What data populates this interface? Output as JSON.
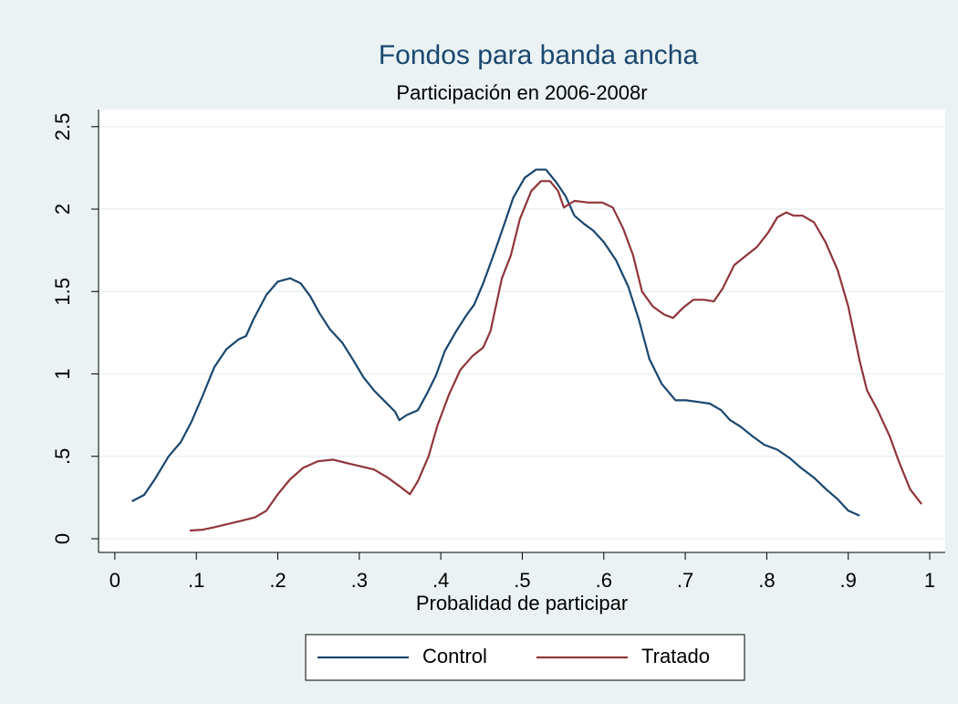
{
  "chart_data": {
    "type": "line",
    "title": "Fondos para banda ancha",
    "subtitle": "Participación en 2006-2008r",
    "x_label": "Probalidad de participar",
    "xlim": [
      -0.02,
      1.019
    ],
    "ylim": [
      -0.083,
      2.604
    ],
    "xticks": [
      0,
      {
        "value": 0.1,
        "label": ".1"
      },
      {
        "value": 0.2,
        "label": ".2"
      },
      {
        "value": 0.3,
        "label": ".3"
      },
      {
        "value": 0.4,
        "label": ".4"
      },
      {
        "value": 0.5,
        "label": ".5"
      },
      {
        "value": 0.6,
        "label": ".6"
      },
      {
        "value": 0.7,
        "label": ".7"
      },
      {
        "value": 0.8,
        "label": ".8"
      },
      {
        "value": 0.9,
        "label": ".9"
      },
      1
    ],
    "yticks": [
      0,
      {
        "value": 0.5,
        "label": ".5"
      },
      1,
      1.5,
      2,
      2.5
    ],
    "grid": true,
    "legend": "bottom",
    "series": [
      {
        "name": "Control",
        "color": "#1a476f",
        "x": [
          0.021,
          0.036,
          0.049,
          0.066,
          0.081,
          0.094,
          0.108,
          0.122,
          0.137,
          0.152,
          0.161,
          0.17,
          0.186,
          0.2,
          0.215,
          0.228,
          0.24,
          0.251,
          0.264,
          0.279,
          0.293,
          0.305,
          0.318,
          0.332,
          0.344,
          0.349,
          0.358,
          0.372,
          0.383,
          0.394,
          0.405,
          0.419,
          0.432,
          0.441,
          0.452,
          0.466,
          0.478,
          0.489,
          0.503,
          0.517,
          0.529,
          0.542,
          0.553,
          0.564,
          0.576,
          0.587,
          0.6,
          0.615,
          0.63,
          0.643,
          0.656,
          0.671,
          0.688,
          0.701,
          0.716,
          0.73,
          0.744,
          0.755,
          0.768,
          0.783,
          0.797,
          0.813,
          0.828,
          0.842,
          0.858,
          0.873,
          0.887,
          0.9,
          0.914
        ],
        "values": [
          0.227,
          0.266,
          0.36,
          0.5,
          0.587,
          0.709,
          0.87,
          1.04,
          1.15,
          1.21,
          1.23,
          1.33,
          1.48,
          1.56,
          1.58,
          1.55,
          1.47,
          1.37,
          1.27,
          1.19,
          1.08,
          0.98,
          0.9,
          0.83,
          0.77,
          0.72,
          0.75,
          0.78,
          0.88,
          0.99,
          1.14,
          1.26,
          1.36,
          1.42,
          1.55,
          1.74,
          1.91,
          2.07,
          2.19,
          2.24,
          2.24,
          2.16,
          2.08,
          1.96,
          1.91,
          1.87,
          1.8,
          1.69,
          1.53,
          1.33,
          1.09,
          0.94,
          0.84,
          0.84,
          0.83,
          0.82,
          0.78,
          0.72,
          0.68,
          0.62,
          0.57,
          0.54,
          0.49,
          0.43,
          0.37,
          0.3,
          0.24,
          0.17,
          0.14
        ]
      },
      {
        "name": "Tratado",
        "color": "#90353b",
        "x": [
          0.092,
          0.108,
          0.122,
          0.139,
          0.156,
          0.172,
          0.186,
          0.2,
          0.215,
          0.231,
          0.249,
          0.268,
          0.284,
          0.301,
          0.318,
          0.335,
          0.349,
          0.362,
          0.372,
          0.385,
          0.396,
          0.41,
          0.424,
          0.439,
          0.452,
          0.461,
          0.475,
          0.486,
          0.497,
          0.511,
          0.523,
          0.534,
          0.544,
          0.551,
          0.564,
          0.581,
          0.598,
          0.611,
          0.624,
          0.636,
          0.647,
          0.66,
          0.674,
          0.685,
          0.697,
          0.71,
          0.723,
          0.735,
          0.746,
          0.76,
          0.775,
          0.788,
          0.802,
          0.813,
          0.824,
          0.833,
          0.844,
          0.858,
          0.872,
          0.887,
          0.9,
          0.914,
          0.923,
          0.936,
          0.951,
          0.962,
          0.976,
          0.99
        ],
        "values": [
          0.05,
          0.055,
          0.07,
          0.09,
          0.11,
          0.13,
          0.17,
          0.27,
          0.36,
          0.43,
          0.47,
          0.48,
          0.46,
          0.44,
          0.42,
          0.37,
          0.32,
          0.27,
          0.35,
          0.5,
          0.69,
          0.875,
          1.025,
          1.11,
          1.16,
          1.26,
          1.58,
          1.72,
          1.94,
          2.11,
          2.17,
          2.17,
          2.11,
          2.01,
          2.05,
          2.04,
          2.04,
          2.01,
          1.88,
          1.72,
          1.5,
          1.41,
          1.36,
          1.34,
          1.4,
          1.45,
          1.45,
          1.44,
          1.52,
          1.66,
          1.72,
          1.77,
          1.86,
          1.95,
          1.98,
          1.96,
          1.96,
          1.92,
          1.8,
          1.63,
          1.41,
          1.08,
          0.9,
          0.78,
          0.62,
          0.47,
          0.3,
          0.21
        ]
      }
    ]
  }
}
